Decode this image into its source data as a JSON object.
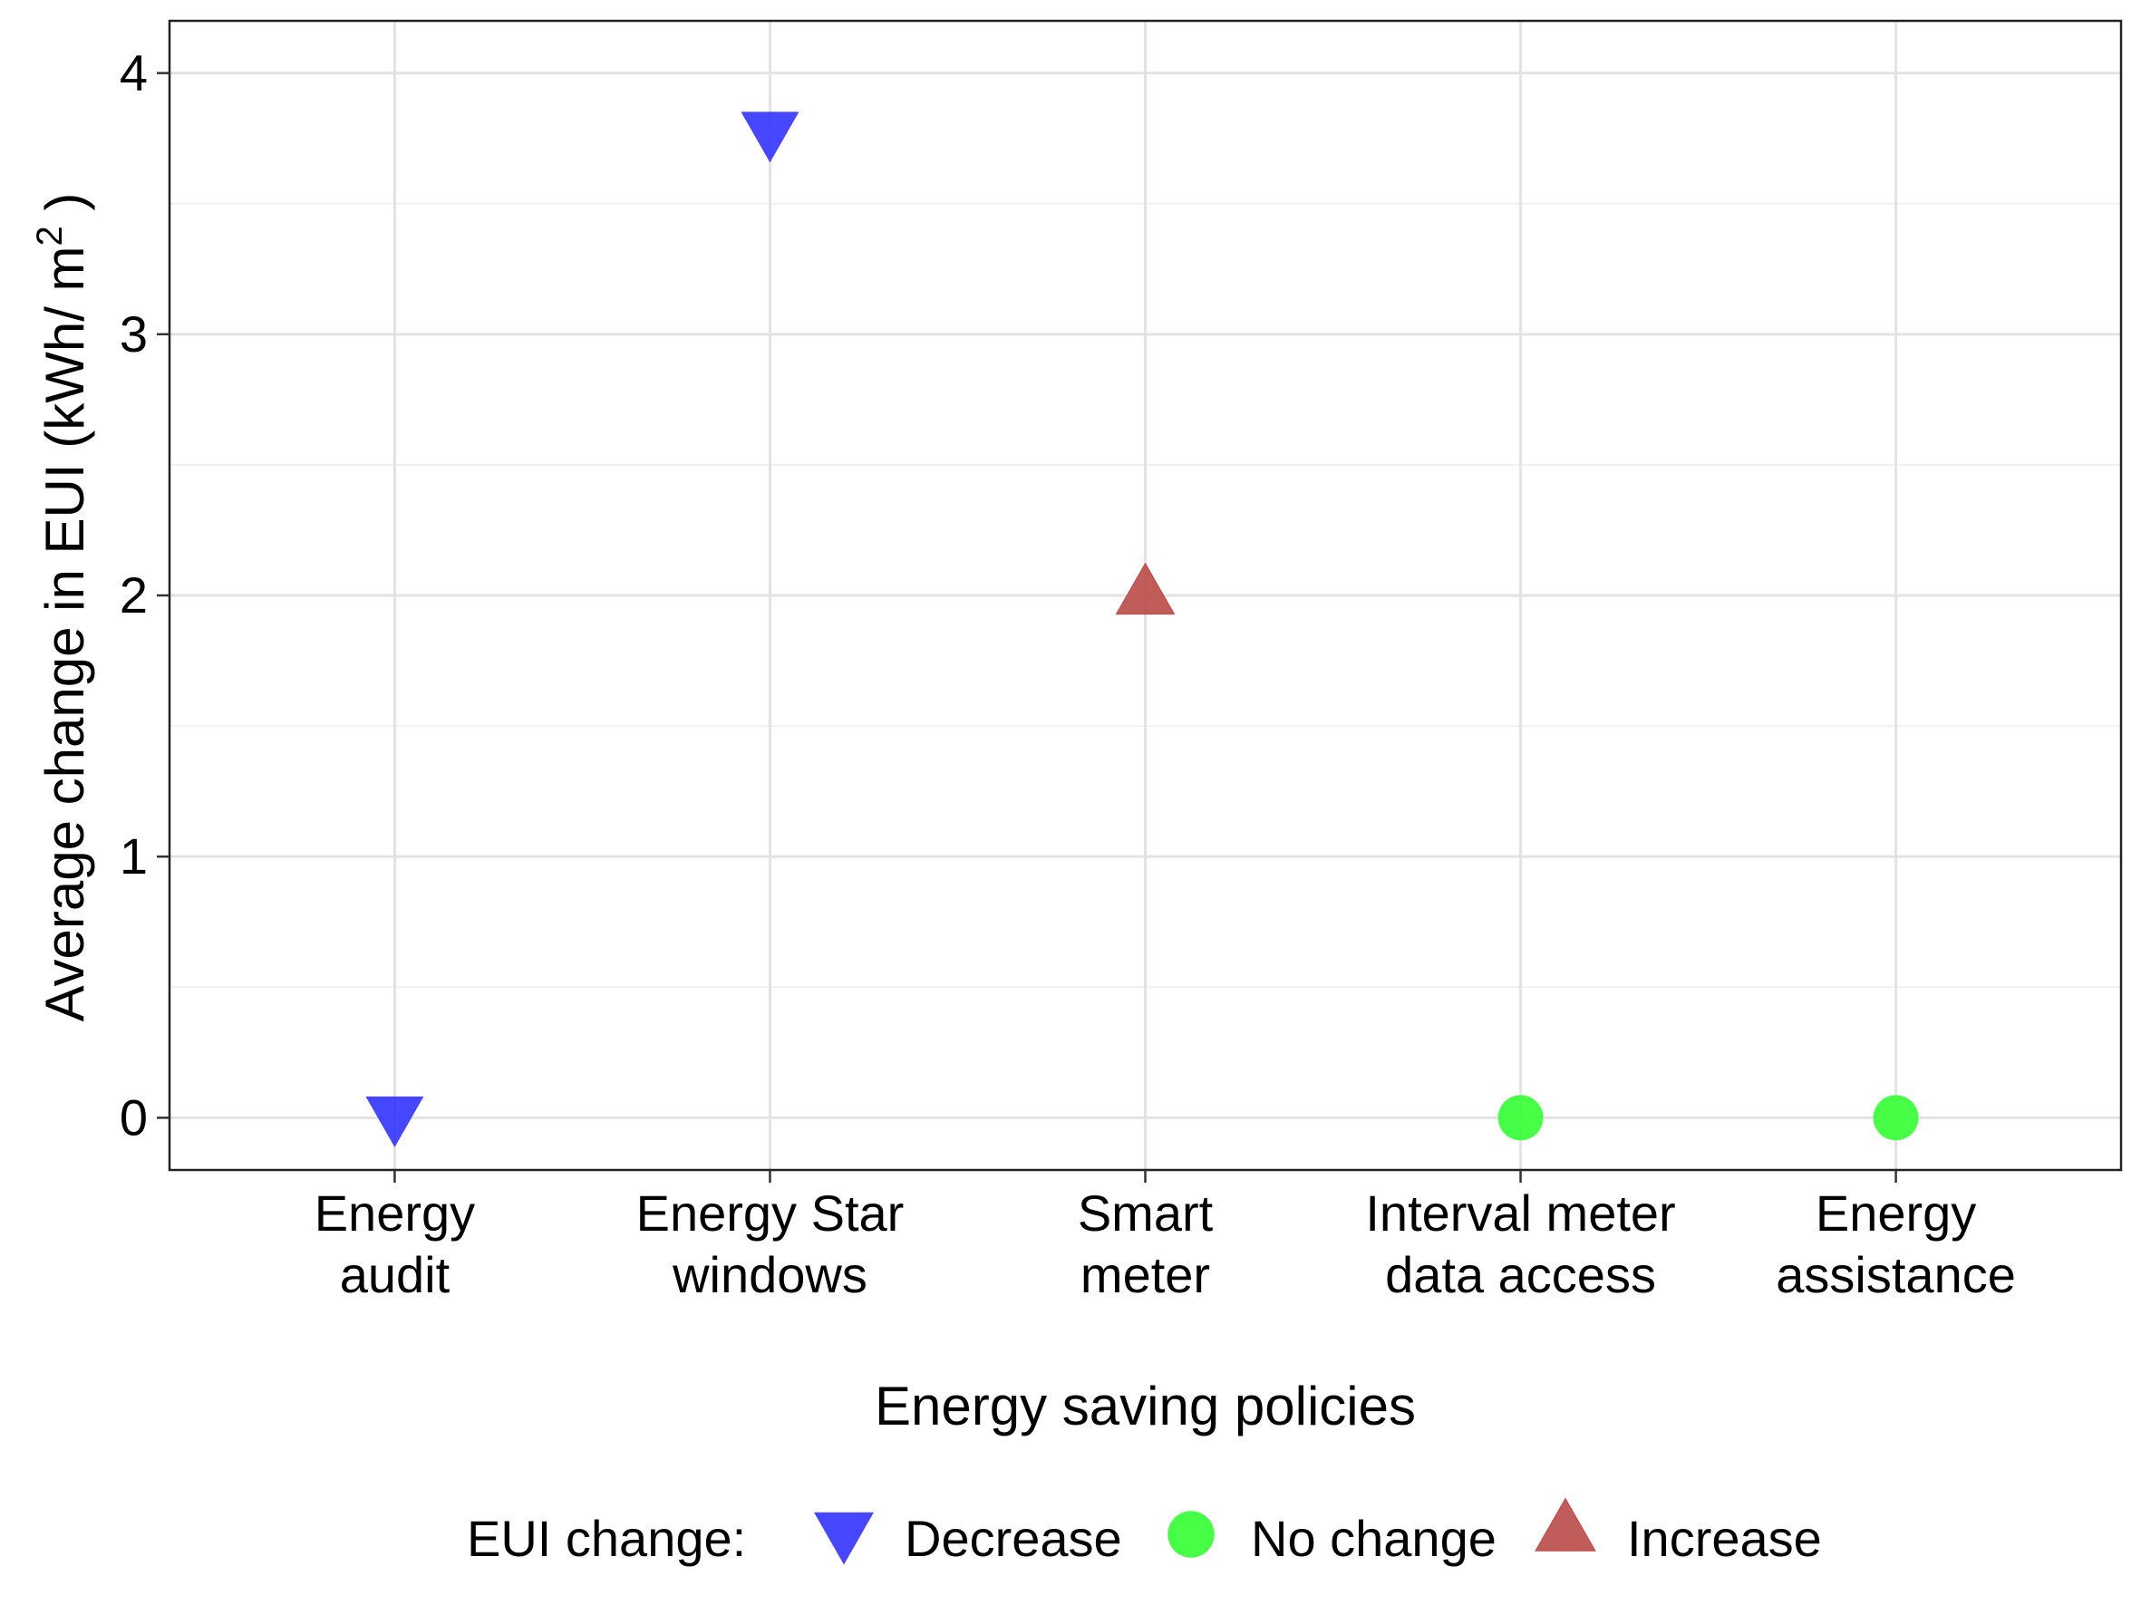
{
  "chart_data": {
    "type": "scatter",
    "xlabel": "Energy saving policies",
    "ylabel": "Average change in EUI (kWh/ m",
    "ylabel_superscript": "2",
    "ylabel_suffix": " )",
    "ylim": [
      -0.2,
      4.2
    ],
    "yticks": [
      "0",
      "1",
      "2",
      "3",
      "4"
    ],
    "ytick_values": [
      0,
      1,
      2,
      3,
      4
    ],
    "grid": true,
    "categories": [
      [
        "Energy",
        "audit"
      ],
      [
        "Energy Star",
        "windows"
      ],
      [
        "Smart",
        "meter"
      ],
      [
        "Interval meter",
        "data access"
      ],
      [
        "Energy",
        "assistance"
      ]
    ],
    "points": [
      {
        "category_index": 0,
        "value": 0.0,
        "group": "Decrease"
      },
      {
        "category_index": 1,
        "value": 3.77,
        "group": "Decrease"
      },
      {
        "category_index": 2,
        "value": 2.01,
        "group": "Increase"
      },
      {
        "category_index": 3,
        "value": 0.0,
        "group": "No change"
      },
      {
        "category_index": 4,
        "value": 0.0,
        "group": "No change"
      }
    ],
    "legend": {
      "title": "EUI change:",
      "position": "bottom",
      "entries": [
        {
          "label": "Decrease",
          "shape": "triangle-down",
          "color": "#3333ff"
        },
        {
          "label": "No change",
          "shape": "circle",
          "color": "#33ff33"
        },
        {
          "label": "Increase",
          "shape": "triangle-up",
          "color": "#b94a48"
        }
      ]
    }
  }
}
